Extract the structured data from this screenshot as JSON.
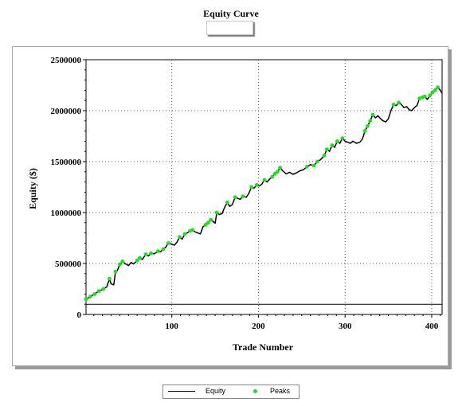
{
  "chart_data": {
    "type": "line",
    "title": "Equity Curve",
    "xlabel": "Trade Number",
    "ylabel": "Equity ($)",
    "xlim": [
      1,
      412
    ],
    "ylim": [
      0,
      2500000
    ],
    "x_ticks": [
      100,
      200,
      300,
      400
    ],
    "y_ticks": [
      0,
      500000,
      1000000,
      1500000,
      2000000,
      2500000
    ],
    "x_tick_labels": [
      "100",
      "200",
      "300",
      "400"
    ],
    "y_tick_labels": [
      "0",
      "500000",
      "1000000",
      "1500000",
      "2000000",
      "2500000"
    ],
    "baseline": 100000,
    "grid": true,
    "legend_position": "bottom",
    "series": [
      {
        "name": "Equity",
        "color": "#000000",
        "points": [
          [
            1,
            150000
          ],
          [
            5,
            170000
          ],
          [
            10,
            195000
          ],
          [
            15,
            225000
          ],
          [
            20,
            245000
          ],
          [
            25,
            270000
          ],
          [
            28,
            350000
          ],
          [
            30,
            300000
          ],
          [
            33,
            290000
          ],
          [
            35,
            420000
          ],
          [
            37,
            430000
          ],
          [
            40,
            490000
          ],
          [
            43,
            520000
          ],
          [
            46,
            500000
          ],
          [
            50,
            480000
          ],
          [
            53,
            510000
          ],
          [
            56,
            495000
          ],
          [
            60,
            530000
          ],
          [
            63,
            555000
          ],
          [
            66,
            540000
          ],
          [
            70,
            590000
          ],
          [
            73,
            575000
          ],
          [
            76,
            600000
          ],
          [
            80,
            595000
          ],
          [
            84,
            620000
          ],
          [
            87,
            615000
          ],
          [
            90,
            640000
          ],
          [
            93,
            660000
          ],
          [
            96,
            700000
          ],
          [
            100,
            690000
          ],
          [
            103,
            680000
          ],
          [
            106,
            710000
          ],
          [
            109,
            760000
          ],
          [
            112,
            740000
          ],
          [
            115,
            790000
          ],
          [
            118,
            800000
          ],
          [
            121,
            820000
          ],
          [
            124,
            830000
          ],
          [
            127,
            810000
          ],
          [
            130,
            800000
          ],
          [
            133,
            790000
          ],
          [
            136,
            860000
          ],
          [
            139,
            880000
          ],
          [
            142,
            900000
          ],
          [
            145,
            930000
          ],
          [
            148,
            910000
          ],
          [
            150,
            895000
          ],
          [
            152,
            1000000
          ],
          [
            155,
            980000
          ],
          [
            158,
            990000
          ],
          [
            161,
            1050000
          ],
          [
            164,
            1100000
          ],
          [
            167,
            1060000
          ],
          [
            170,
            1080000
          ],
          [
            173,
            1150000
          ],
          [
            176,
            1140000
          ],
          [
            179,
            1130000
          ],
          [
            182,
            1160000
          ],
          [
            186,
            1150000
          ],
          [
            189,
            1190000
          ],
          [
            192,
            1250000
          ],
          [
            195,
            1240000
          ],
          [
            198,
            1270000
          ],
          [
            201,
            1260000
          ],
          [
            204,
            1280000
          ],
          [
            207,
            1320000
          ],
          [
            210,
            1300000
          ],
          [
            213,
            1330000
          ],
          [
            216,
            1350000
          ],
          [
            219,
            1380000
          ],
          [
            222,
            1400000
          ],
          [
            225,
            1440000
          ],
          [
            228,
            1410000
          ],
          [
            232,
            1380000
          ],
          [
            236,
            1395000
          ],
          [
            240,
            1375000
          ],
          [
            244,
            1390000
          ],
          [
            248,
            1410000
          ],
          [
            252,
            1420000
          ],
          [
            256,
            1450000
          ],
          [
            260,
            1470000
          ],
          [
            264,
            1460000
          ],
          [
            268,
            1500000
          ],
          [
            272,
            1520000
          ],
          [
            276,
            1560000
          ],
          [
            279,
            1620000
          ],
          [
            282,
            1600000
          ],
          [
            285,
            1660000
          ],
          [
            288,
            1640000
          ],
          [
            291,
            1700000
          ],
          [
            294,
            1680000
          ],
          [
            297,
            1730000
          ],
          [
            300,
            1700000
          ],
          [
            303,
            1690000
          ],
          [
            306,
            1680000
          ],
          [
            309,
            1700000
          ],
          [
            313,
            1680000
          ],
          [
            317,
            1690000
          ],
          [
            320,
            1720000
          ],
          [
            323,
            1800000
          ],
          [
            326,
            1850000
          ],
          [
            329,
            1900000
          ],
          [
            332,
            1960000
          ],
          [
            335,
            1930000
          ],
          [
            338,
            1950000
          ],
          [
            341,
            1920000
          ],
          [
            344,
            1900000
          ],
          [
            347,
            1890000
          ],
          [
            350,
            1920000
          ],
          [
            353,
            2000000
          ],
          [
            356,
            2060000
          ],
          [
            359,
            2050000
          ],
          [
            362,
            2080000
          ],
          [
            365,
            2060000
          ],
          [
            368,
            2030000
          ],
          [
            371,
            2040000
          ],
          [
            374,
            2010000
          ],
          [
            377,
            2000000
          ],
          [
            380,
            2030000
          ],
          [
            383,
            2050000
          ],
          [
            386,
            2120000
          ],
          [
            389,
            2130000
          ],
          [
            392,
            2140000
          ],
          [
            395,
            2110000
          ],
          [
            398,
            2150000
          ],
          [
            401,
            2180000
          ],
          [
            404,
            2200000
          ],
          [
            407,
            2230000
          ],
          [
            410,
            2200000
          ],
          [
            412,
            2170000
          ]
        ]
      },
      {
        "name": "Peaks",
        "color": "#22dd22",
        "points": [
          [
            1,
            150000
          ],
          [
            6,
            175000
          ],
          [
            11,
            200000
          ],
          [
            16,
            230000
          ],
          [
            21,
            250000
          ],
          [
            28,
            350000
          ],
          [
            35,
            420000
          ],
          [
            40,
            490000
          ],
          [
            43,
            520000
          ],
          [
            60,
            530000
          ],
          [
            63,
            555000
          ],
          [
            70,
            590000
          ],
          [
            76,
            600000
          ],
          [
            84,
            620000
          ],
          [
            90,
            640000
          ],
          [
            96,
            700000
          ],
          [
            109,
            760000
          ],
          [
            115,
            790000
          ],
          [
            121,
            820000
          ],
          [
            124,
            830000
          ],
          [
            139,
            880000
          ],
          [
            142,
            900000
          ],
          [
            145,
            930000
          ],
          [
            152,
            1000000
          ],
          [
            164,
            1100000
          ],
          [
            173,
            1150000
          ],
          [
            182,
            1160000
          ],
          [
            192,
            1250000
          ],
          [
            198,
            1270000
          ],
          [
            207,
            1320000
          ],
          [
            216,
            1350000
          ],
          [
            219,
            1380000
          ],
          [
            222,
            1400000
          ],
          [
            225,
            1440000
          ],
          [
            256,
            1450000
          ],
          [
            264,
            1460000
          ],
          [
            268,
            1500000
          ],
          [
            276,
            1560000
          ],
          [
            279,
            1620000
          ],
          [
            285,
            1660000
          ],
          [
            291,
            1700000
          ],
          [
            297,
            1730000
          ],
          [
            323,
            1800000
          ],
          [
            326,
            1850000
          ],
          [
            329,
            1900000
          ],
          [
            332,
            1960000
          ],
          [
            356,
            2060000
          ],
          [
            362,
            2080000
          ],
          [
            386,
            2120000
          ],
          [
            389,
            2130000
          ],
          [
            392,
            2140000
          ],
          [
            398,
            2150000
          ],
          [
            401,
            2180000
          ],
          [
            404,
            2200000
          ],
          [
            407,
            2230000
          ]
        ]
      }
    ]
  }
}
